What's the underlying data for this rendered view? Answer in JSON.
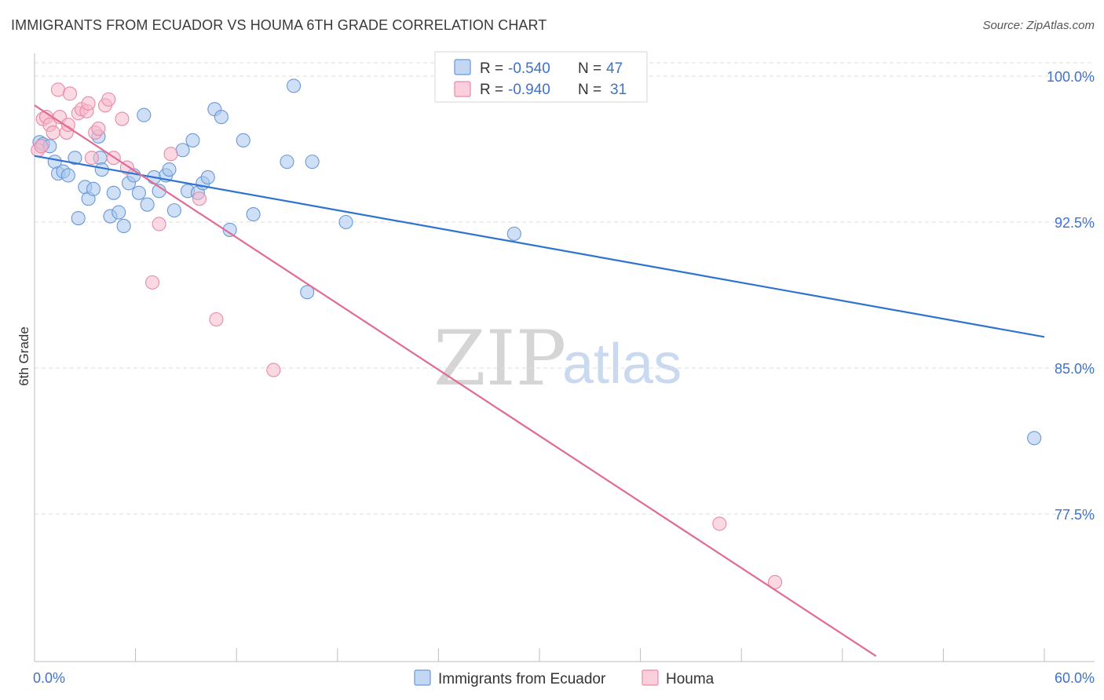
{
  "title": "IMMIGRANTS FROM ECUADOR VS HOUMA 6TH GRADE CORRELATION CHART",
  "source": "Source: ZipAtlas.com",
  "watermark": {
    "zip": "ZIP",
    "atlas": "atlas"
  },
  "colors": {
    "blue_fill": "#a8c6ee",
    "blue_stroke": "#6a98d8",
    "blue_line": "#2f72cf",
    "pink_fill": "#f7b9cc",
    "pink_stroke": "#e889a8",
    "pink_line": "#e06b93",
    "grid": "#dedede",
    "axis_text": "#3f72c8"
  },
  "legend": {
    "rows": [
      {
        "r_label": "R = ",
        "r_value": "-0.540",
        "n_label": "N = ",
        "n_value": "47",
        "series": "blue"
      },
      {
        "r_label": "R = ",
        "r_value": "-0.940",
        "n_label": "N = ",
        "n_value": "31",
        "series": "pink"
      }
    ]
  },
  "chart_data": {
    "type": "scatter",
    "title": "IMMIGRANTS FROM ECUADOR VS HOUMA 6TH GRADE CORRELATION CHART",
    "xlabel": "",
    "ylabel": "6th Grade",
    "xlim": [
      0,
      60
    ],
    "ylim": [
      70.2,
      101.5
    ],
    "x_tick_labels": [
      "0.0%",
      "60.0%"
    ],
    "y_ticks": [
      77.5,
      85.0,
      92.5,
      100.0
    ],
    "y_tick_labels": [
      "77.5%",
      "85.0%",
      "92.5%",
      "100.0%"
    ],
    "grid": true,
    "legend_position": "top-center",
    "series": [
      {
        "name": "Immigrants from Ecuador",
        "color": "blue",
        "trend": {
          "x": [
            0,
            60
          ],
          "y": [
            95.9,
            86.6
          ]
        },
        "points": [
          [
            0.3,
            96.6
          ],
          [
            0.5,
            96.5
          ],
          [
            0.9,
            96.4
          ],
          [
            1.2,
            95.6
          ],
          [
            1.4,
            95.0
          ],
          [
            1.7,
            95.1
          ],
          [
            2.0,
            94.9
          ],
          [
            2.4,
            95.8
          ],
          [
            2.6,
            92.7
          ],
          [
            3.0,
            94.3
          ],
          [
            3.2,
            93.7
          ],
          [
            3.5,
            94.2
          ],
          [
            3.9,
            95.8
          ],
          [
            4.0,
            95.2
          ],
          [
            4.5,
            92.8
          ],
          [
            4.7,
            94.0
          ],
          [
            5.0,
            93.0
          ],
          [
            5.3,
            92.3
          ],
          [
            5.6,
            94.5
          ],
          [
            5.9,
            94.9
          ],
          [
            6.2,
            94.0
          ],
          [
            6.5,
            98.0
          ],
          [
            6.7,
            93.4
          ],
          [
            7.1,
            94.8
          ],
          [
            7.4,
            94.1
          ],
          [
            7.8,
            94.9
          ],
          [
            8.0,
            95.2
          ],
          [
            8.3,
            93.1
          ],
          [
            9.1,
            94.1
          ],
          [
            9.4,
            96.7
          ],
          [
            9.7,
            94.0
          ],
          [
            10.0,
            94.5
          ],
          [
            10.3,
            94.8
          ],
          [
            10.7,
            98.3
          ],
          [
            11.1,
            97.9
          ],
          [
            11.6,
            92.1
          ],
          [
            12.4,
            96.7
          ],
          [
            13.0,
            92.9
          ],
          [
            15.0,
            95.6
          ],
          [
            15.4,
            99.5
          ],
          [
            16.2,
            88.9
          ],
          [
            16.5,
            95.6
          ],
          [
            18.5,
            92.5
          ],
          [
            28.5,
            91.9
          ],
          [
            59.4,
            81.4
          ],
          [
            3.8,
            96.9
          ],
          [
            8.8,
            96.2
          ]
        ]
      },
      {
        "name": "Houma",
        "color": "pink",
        "trend": {
          "x": [
            0,
            50
          ],
          "y": [
            98.5,
            70.2
          ]
        },
        "points": [
          [
            0.2,
            96.2
          ],
          [
            0.5,
            97.8
          ],
          [
            0.7,
            97.9
          ],
          [
            0.9,
            97.5
          ],
          [
            1.1,
            97.1
          ],
          [
            1.4,
            99.3
          ],
          [
            1.5,
            97.9
          ],
          [
            1.9,
            97.1
          ],
          [
            2.0,
            97.5
          ],
          [
            2.1,
            99.1
          ],
          [
            2.6,
            98.1
          ],
          [
            2.8,
            98.3
          ],
          [
            3.1,
            98.2
          ],
          [
            3.2,
            98.6
          ],
          [
            3.4,
            95.8
          ],
          [
            3.6,
            97.1
          ],
          [
            3.8,
            97.3
          ],
          [
            4.2,
            98.5
          ],
          [
            4.4,
            98.8
          ],
          [
            4.7,
            95.8
          ],
          [
            5.2,
            97.8
          ],
          [
            5.5,
            95.3
          ],
          [
            7.0,
            89.4
          ],
          [
            7.4,
            92.4
          ],
          [
            8.1,
            96.0
          ],
          [
            9.8,
            93.7
          ],
          [
            10.8,
            87.5
          ],
          [
            14.2,
            84.9
          ],
          [
            40.7,
            77.0
          ],
          [
            44.0,
            74.0
          ],
          [
            0.4,
            96.4
          ]
        ]
      }
    ]
  }
}
